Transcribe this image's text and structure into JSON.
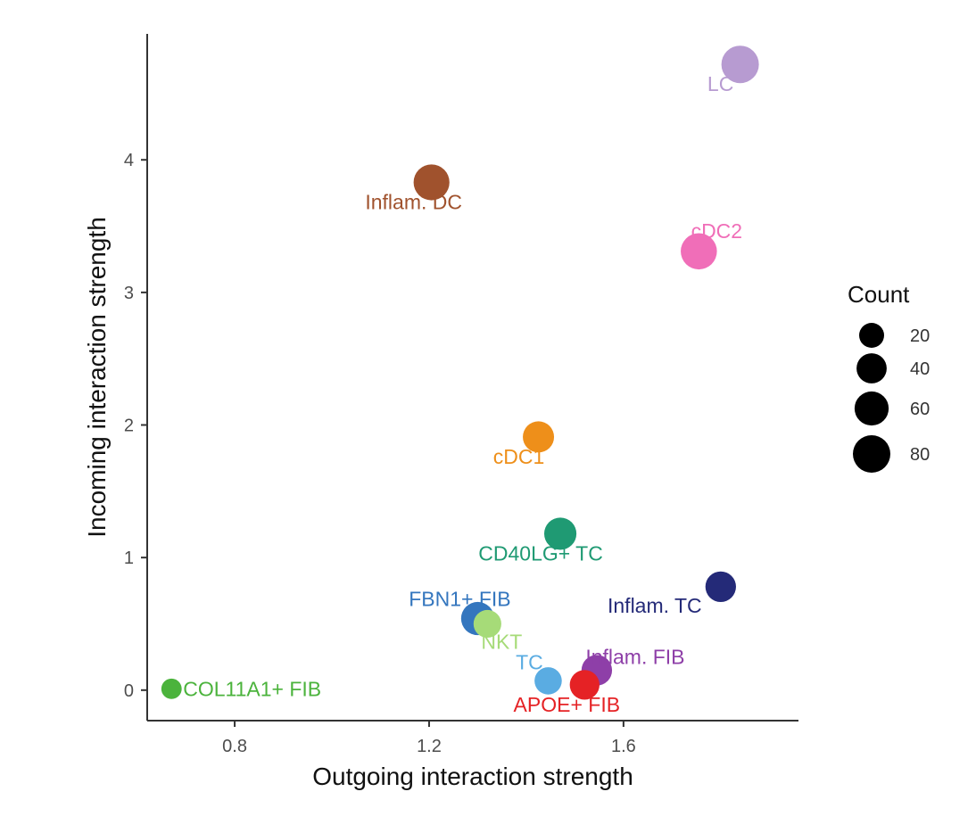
{
  "chart_data": {
    "type": "scatter",
    "title": "",
    "xlabel": "Outgoing interaction strength",
    "ylabel": "Incoming interaction strength",
    "xlim": [
      0.62,
      1.96
    ],
    "ylim": [
      -0.23,
      4.95
    ],
    "xticks": [
      0.8,
      1.2,
      1.6
    ],
    "xtick_labels": [
      "0.8",
      "1.2",
      "1.6"
    ],
    "yticks": [
      0,
      1,
      2,
      3,
      4
    ],
    "ytick_labels": [
      "0",
      "1",
      "2",
      "3",
      "4"
    ],
    "grid": false,
    "legend": {
      "title": "Count",
      "position": "right",
      "sizes": [
        20,
        40,
        60,
        80
      ],
      "labels": [
        "20",
        "40",
        "60",
        "80"
      ]
    },
    "points": [
      {
        "label": "LC",
        "x": 1.84,
        "y": 4.72,
        "count": 80,
        "color": "#b79bd1"
      },
      {
        "label": "Inflam. DC",
        "x": 1.205,
        "y": 3.83,
        "count": 70,
        "color": "#a0522d"
      },
      {
        "label": "cDC2",
        "x": 1.755,
        "y": 3.31,
        "count": 72,
        "color": "#f06eb8"
      },
      {
        "label": "cDC1",
        "x": 1.425,
        "y": 1.91,
        "count": 45,
        "color": "#ee8f1a"
      },
      {
        "label": "CD40LG+ TC",
        "x": 1.47,
        "y": 1.18,
        "count": 50,
        "color": "#1f9a73"
      },
      {
        "label": "Inflam. TC",
        "x": 1.8,
        "y": 0.78,
        "count": 42,
        "color": "#242a78"
      },
      {
        "label": "FBN1+ FIB",
        "x": 1.3,
        "y": 0.54,
        "count": 55,
        "color": "#3476be"
      },
      {
        "label": "NKT",
        "x": 1.32,
        "y": 0.5,
        "count": 30,
        "color": "#a6db78"
      },
      {
        "label": "Inflam. FIB",
        "x": 1.545,
        "y": 0.15,
        "count": 42,
        "color": "#8e3fa8"
      },
      {
        "label": "TC",
        "x": 1.445,
        "y": 0.07,
        "count": 28,
        "color": "#5aace2"
      },
      {
        "label": "APOE+ FIB",
        "x": 1.52,
        "y": 0.04,
        "count": 38,
        "color": "#e52225"
      },
      {
        "label": "COL11A1+ FIB",
        "x": 0.67,
        "y": 0.01,
        "count": 8,
        "color": "#4bb33c"
      }
    ]
  }
}
